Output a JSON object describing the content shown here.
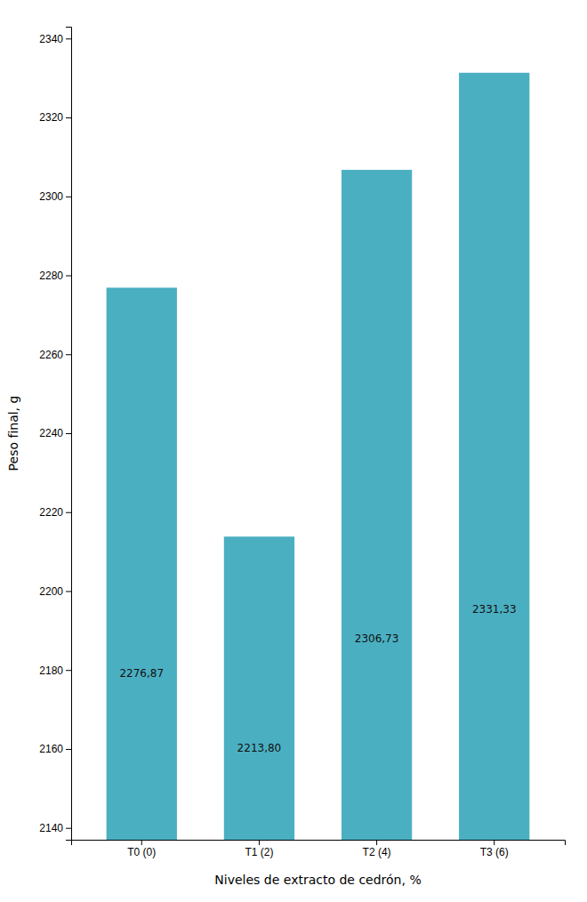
{
  "chart_data": {
    "type": "bar",
    "categories": [
      "T0 (0)",
      "T1 (2)",
      "T2 (4)",
      "T3 (6)"
    ],
    "values": [
      2276.87,
      2213.8,
      2306.73,
      2331.33
    ],
    "value_labels": [
      "2276,87",
      "2213,80",
      "2306,73",
      "2331,33"
    ],
    "data_labels": true,
    "color": "#4BAFC2",
    "xlabel": "Niveles de extracto de cedrón, %",
    "ylabel": "Peso final, g",
    "ylim": [
      2137,
      2343
    ],
    "yticks": [
      2140,
      2160,
      2180,
      2200,
      2220,
      2240,
      2260,
      2280,
      2300,
      2320,
      2340
    ],
    "grid": false
  }
}
